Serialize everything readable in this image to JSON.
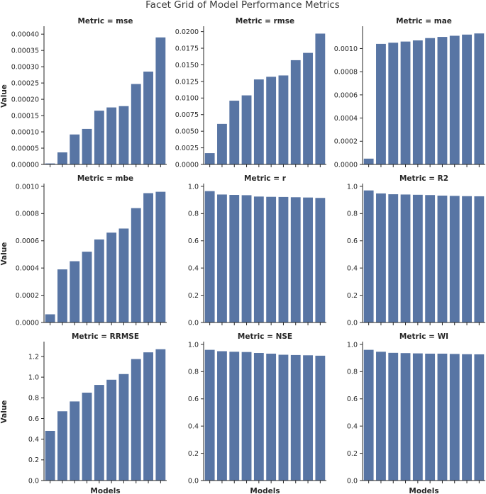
{
  "figure": {
    "title": "Facet Grid of Model Performance Metrics",
    "xlabel": "Models",
    "ylabel": "Value",
    "bar_color": "#5875a4"
  },
  "chart_data": [
    {
      "type": "bar",
      "title": "Metric = mse",
      "ylim": [
        0,
        0.00042
      ],
      "yticks": [
        0,
        5e-05,
        0.0001,
        0.00015,
        0.0002,
        0.00025,
        0.0003,
        0.00035,
        0.0004
      ],
      "ytick_labels": [
        "0.00000",
        "0.00005",
        "0.00010",
        "0.00015",
        "0.00020",
        "0.00025",
        "0.00030",
        "0.00035",
        "0.00040"
      ],
      "values": [
        3e-06,
        3.7e-05,
        9.2e-05,
        0.000109,
        0.000165,
        0.000175,
        0.000179,
        0.000247,
        0.000285,
        0.00039
      ]
    },
    {
      "type": "bar",
      "title": "Metric = rmse",
      "ylim": [
        0,
        0.0206
      ],
      "yticks": [
        0,
        0.0025,
        0.005,
        0.0075,
        0.01,
        0.0125,
        0.015,
        0.0175,
        0.02
      ],
      "ytick_labels": [
        "0.0000",
        "0.0025",
        "0.0050",
        "0.0075",
        "0.0100",
        "0.0125",
        "0.0150",
        "0.0175",
        "0.0200"
      ],
      "values": [
        0.0017,
        0.0061,
        0.0096,
        0.0104,
        0.0128,
        0.0132,
        0.0134,
        0.0157,
        0.0168,
        0.0197
      ]
    },
    {
      "type": "bar",
      "title": "Metric = mae",
      "ylim": [
        0,
        0.00118
      ],
      "yticks": [
        0,
        0.0002,
        0.0004,
        0.0006,
        0.0008,
        0.001
      ],
      "ytick_labels": [
        "0.0000",
        "0.0002",
        "0.0004",
        "0.0006",
        "0.0008",
        "0.0010"
      ],
      "values": [
        5e-05,
        0.00104,
        0.00105,
        0.00106,
        0.00107,
        0.00109,
        0.0011,
        0.00111,
        0.00112,
        0.00113
      ]
    },
    {
      "type": "bar",
      "title": "Metric = mbe",
      "ylim": [
        0,
        0.00101
      ],
      "yticks": [
        0,
        0.0002,
        0.0004,
        0.0006,
        0.0008,
        0.001
      ],
      "ytick_labels": [
        "0.0000",
        "0.0002",
        "0.0004",
        "0.0006",
        "0.0008",
        "0.0010"
      ],
      "values": [
        6e-05,
        0.00039,
        0.00045,
        0.00052,
        0.00061,
        0.00066,
        0.00069,
        0.00084,
        0.00095,
        0.00096
      ]
    },
    {
      "type": "bar",
      "title": "Metric = r",
      "ylim": [
        0,
        1.01
      ],
      "yticks": [
        0,
        0.2,
        0.4,
        0.6,
        0.8,
        1.0
      ],
      "ytick_labels": [
        "0.0",
        "0.2",
        "0.4",
        "0.6",
        "0.8",
        "1.0"
      ],
      "values": [
        0.965,
        0.94,
        0.937,
        0.935,
        0.925,
        0.923,
        0.922,
        0.92,
        0.918,
        0.915
      ]
    },
    {
      "type": "bar",
      "title": "Metric = R2",
      "ylim": [
        0,
        1.01
      ],
      "yticks": [
        0,
        0.2,
        0.4,
        0.6,
        0.8,
        1.0
      ],
      "ytick_labels": [
        "0.0",
        "0.2",
        "0.4",
        "0.6",
        "0.8",
        "1.0"
      ],
      "values": [
        0.97,
        0.948,
        0.942,
        0.94,
        0.938,
        0.936,
        0.932,
        0.93,
        0.928,
        0.927
      ]
    },
    {
      "type": "bar",
      "title": "Metric = RRMSE",
      "ylim": [
        0,
        1.33
      ],
      "yticks": [
        0,
        0.2,
        0.4,
        0.6,
        0.8,
        1.0,
        1.2
      ],
      "ytick_labels": [
        "0.0",
        "0.2",
        "0.4",
        "0.6",
        "0.8",
        "1.0",
        "1.2"
      ],
      "values": [
        0.48,
        0.67,
        0.765,
        0.85,
        0.925,
        0.975,
        1.03,
        1.175,
        1.24,
        1.27
      ]
    },
    {
      "type": "bar",
      "title": "Metric = NSE",
      "ylim": [
        0,
        1.01
      ],
      "yticks": [
        0,
        0.2,
        0.4,
        0.6,
        0.8,
        1.0
      ],
      "ytick_labels": [
        "0.0",
        "0.2",
        "0.4",
        "0.6",
        "0.8",
        "1.0"
      ],
      "values": [
        0.96,
        0.95,
        0.946,
        0.944,
        0.937,
        0.932,
        0.924,
        0.922,
        0.92,
        0.917
      ]
    },
    {
      "type": "bar",
      "title": "Metric = WI",
      "ylim": [
        0,
        1.01
      ],
      "yticks": [
        0,
        0.2,
        0.4,
        0.6,
        0.8,
        1.0
      ],
      "ytick_labels": [
        "0.0",
        "0.2",
        "0.4",
        "0.6",
        "0.8",
        "1.0"
      ],
      "values": [
        0.96,
        0.946,
        0.938,
        0.936,
        0.934,
        0.932,
        0.932,
        0.93,
        0.928,
        0.927
      ]
    }
  ]
}
